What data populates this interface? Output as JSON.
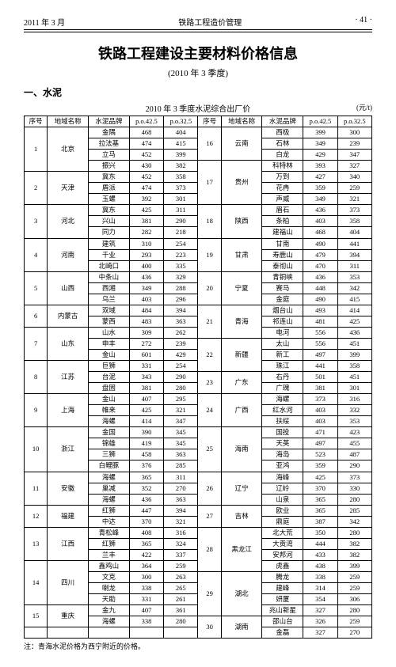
{
  "page_header": {
    "left": "2011 年 3 月",
    "center": "铁路工程造价管理",
    "right": "· 41 ·"
  },
  "title": "铁路工程建设主要材料价格信息",
  "subtitle": "(2010 年 3 季度)",
  "section": "一、水泥",
  "table_title": "2010 年 3 季度水泥综合出厂价",
  "unit": "(元/t)",
  "columns": [
    "序号",
    "地域名称",
    "水泥品牌",
    "p.o.42.5",
    "p.o.32.5"
  ],
  "left_rows": [
    {
      "no": "1",
      "region": "北京",
      "items": [
        [
          "金隅",
          "468",
          "404"
        ],
        [
          "拉法基",
          "474",
          "415"
        ],
        [
          "立马",
          "452",
          "399"
        ],
        [
          "振兴",
          "430",
          "382"
        ]
      ]
    },
    {
      "no": "2",
      "region": "天津",
      "items": [
        [
          "冀东",
          "452",
          "358"
        ],
        [
          "盾派",
          "474",
          "373"
        ],
        [
          "玉螺",
          "392",
          "301"
        ]
      ]
    },
    {
      "no": "3",
      "region": "河北",
      "items": [
        [
          "冀东",
          "425",
          "311"
        ],
        [
          "兴山",
          "381",
          "290"
        ],
        [
          "同力",
          "282",
          "218"
        ]
      ]
    },
    {
      "no": "4",
      "region": "河南",
      "items": [
        [
          "建筑",
          "310",
          "254"
        ],
        [
          "千业",
          "293",
          "223"
        ],
        [
          "北崎口",
          "400",
          "335"
        ]
      ]
    },
    {
      "no": "5",
      "region": "山西",
      "items": [
        [
          "中条山",
          "436",
          "329"
        ],
        [
          "西湘",
          "349",
          "288"
        ],
        [
          "乌兰",
          "403",
          "296"
        ]
      ]
    },
    {
      "no": "6",
      "region": "内蒙古",
      "items": [
        [
          "双域",
          "484",
          "394"
        ],
        [
          "蒙西",
          "483",
          "363"
        ]
      ]
    },
    {
      "no": "7",
      "region": "山东",
      "items": [
        [
          "山水",
          "309",
          "262"
        ],
        [
          "申丰",
          "272",
          "239"
        ],
        [
          "金山",
          "601",
          "429"
        ]
      ]
    },
    {
      "no": "8",
      "region": "江苏",
      "items": [
        [
          "巨狮",
          "331",
          "254"
        ],
        [
          "台泥",
          "343",
          "290"
        ],
        [
          "盘固",
          "381",
          "280"
        ]
      ]
    },
    {
      "no": "9",
      "region": "上海",
      "items": [
        [
          "金山",
          "407",
          "295"
        ],
        [
          "帷来",
          "425",
          "321"
        ],
        [
          "海螺",
          "414",
          "347"
        ]
      ]
    },
    {
      "no": "10",
      "region": "浙江",
      "items": [
        [
          "金国",
          "390",
          "345"
        ],
        [
          "锦雄",
          "419",
          "345"
        ],
        [
          "三狮",
          "458",
          "363"
        ],
        [
          "白鲤豚",
          "376",
          "285"
        ]
      ]
    },
    {
      "no": "11",
      "region": "安徽",
      "items": [
        [
          "海螺",
          "365",
          "311"
        ],
        [
          "巢减",
          "352",
          "270"
        ],
        [
          "海螺",
          "436",
          "363"
        ]
      ]
    },
    {
      "no": "12",
      "region": "福建",
      "items": [
        [
          "红狮",
          "447",
          "394"
        ],
        [
          "中达",
          "370",
          "321"
        ]
      ]
    },
    {
      "no": "13",
      "region": "江西",
      "items": [
        [
          "青松峰",
          "408",
          "316"
        ],
        [
          "红狮",
          "365",
          "324"
        ],
        [
          "兰丰",
          "422",
          "337"
        ]
      ]
    },
    {
      "no": "14",
      "region": "四川",
      "items": [
        [
          "鑫鸡山",
          "364",
          "259"
        ],
        [
          "文克",
          "300",
          "263"
        ],
        [
          "喇龙",
          "338",
          "265"
        ],
        [
          "天助",
          "331",
          "261"
        ]
      ]
    },
    {
      "no": "15",
      "region": "重庆",
      "items": [
        [
          "金九",
          "407",
          "361"
        ],
        [
          "海螺",
          "338",
          "280"
        ]
      ]
    }
  ],
  "right_rows": [
    {
      "no": "16",
      "region": "云南",
      "items": [
        [
          "西极",
          "399",
          "300"
        ],
        [
          "石林",
          "349",
          "239"
        ],
        [
          "白龙",
          "429",
          "347"
        ]
      ]
    },
    {
      "no": "17",
      "region": "贵州",
      "items": [
        [
          "科特林",
          "393",
          "327"
        ],
        [
          "万到",
          "427",
          "340"
        ],
        [
          "花冉",
          "359",
          "259"
        ],
        [
          "声威",
          "349",
          "321"
        ]
      ]
    },
    {
      "no": "18",
      "region": "陕西",
      "items": [
        [
          "眉石",
          "436",
          "373"
        ],
        [
          "条柏",
          "403",
          "358"
        ],
        [
          "建福山",
          "468",
          "404"
        ]
      ]
    },
    {
      "no": "19",
      "region": "甘肃",
      "items": [
        [
          "甘南",
          "490",
          "441"
        ],
        [
          "寿鹿山",
          "479",
          "394"
        ],
        [
          "泰彻山",
          "470",
          "311"
        ]
      ]
    },
    {
      "no": "20",
      "region": "宁夏",
      "items": [
        [
          "青铜峡",
          "436",
          "353"
        ],
        [
          "赛马",
          "448",
          "342"
        ],
        [
          "金庭",
          "490",
          "415"
        ]
      ]
    },
    {
      "no": "21",
      "region": "青海",
      "items": [
        [
          "烟台山",
          "493",
          "414"
        ],
        [
          "祁连山",
          "481",
          "425"
        ],
        [
          "电河",
          "556",
          "436"
        ]
      ]
    },
    {
      "no": "22",
      "region": "新疆",
      "items": [
        [
          "太山",
          "556",
          "451"
        ],
        [
          "新工",
          "497",
          "399"
        ],
        [
          "珠江",
          "441",
          "358"
        ]
      ]
    },
    {
      "no": "23",
      "region": "广东",
      "items": [
        [
          "右丹",
          "501",
          "451"
        ],
        [
          "广瑰",
          "381",
          "301"
        ]
      ]
    },
    {
      "no": "24",
      "region": "广西",
      "items": [
        [
          "海螺",
          "373",
          "316"
        ],
        [
          "红水河",
          "403",
          "332"
        ],
        [
          "扶绥",
          "403",
          "353"
        ]
      ]
    },
    {
      "no": "25",
      "region": "海南",
      "items": [
        [
          "国投",
          "471",
          "423"
        ],
        [
          "天英",
          "497",
          "455"
        ],
        [
          "海岛",
          "523",
          "487"
        ],
        [
          "亚鸿",
          "359",
          "290"
        ]
      ]
    },
    {
      "no": "26",
      "region": "辽宁",
      "items": [
        [
          "海峰",
          "425",
          "373"
        ],
        [
          "辽岭",
          "370",
          "330"
        ],
        [
          "山泉",
          "365",
          "280"
        ]
      ]
    },
    {
      "no": "27",
      "region": "吉林",
      "items": [
        [
          "欧业",
          "365",
          "285"
        ],
        [
          "鼎庭",
          "387",
          "342"
        ]
      ]
    },
    {
      "no": "28",
      "region": "黑龙江",
      "items": [
        [
          "北大荒",
          "350",
          "280"
        ],
        [
          "大贡湾",
          "444",
          "382"
        ],
        [
          "安邦河",
          "433",
          "382"
        ],
        [
          "虎鑫",
          "438",
          "399"
        ]
      ]
    },
    {
      "no": "29",
      "region": "湖北",
      "items": [
        [
          "腾龙",
          "338",
          "259"
        ],
        [
          "建峰",
          "314",
          "259"
        ],
        [
          "妍厦",
          "354",
          "306"
        ],
        [
          "兆山新星",
          "327",
          "280"
        ]
      ]
    },
    {
      "no": "30",
      "region": "湖南",
      "items": [
        [
          "邵山台",
          "326",
          "259"
        ],
        [
          "金磊",
          "327",
          "270"
        ]
      ]
    }
  ],
  "note": "注：青海水泥价格为西宁附近的价格。"
}
